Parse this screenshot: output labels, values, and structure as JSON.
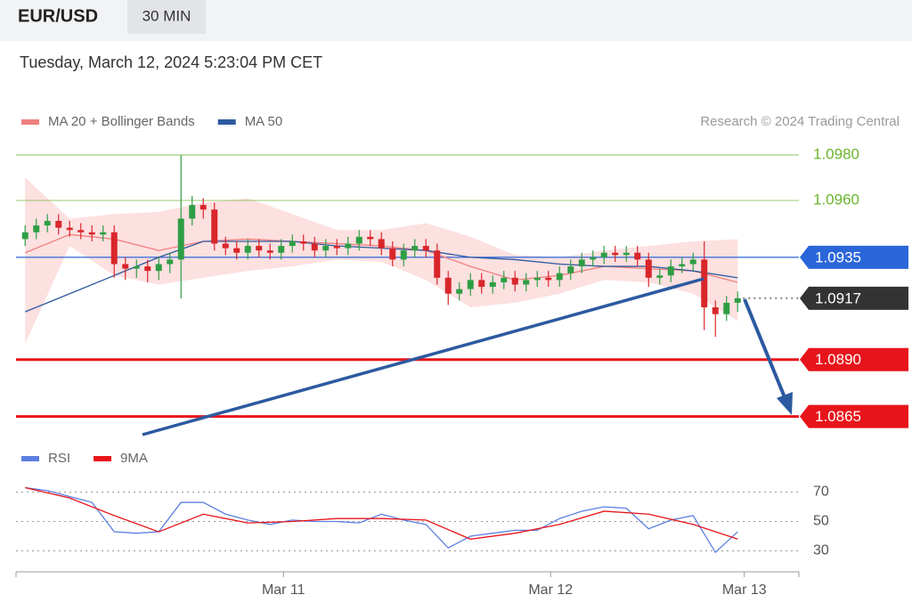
{
  "header": {
    "symbol": "EUR/USD",
    "interval": "30 MIN",
    "timestamp": "Tuesday, March 12, 2024 5:23:04 PM CET",
    "credit": "Research © 2024 Trading Central"
  },
  "chart_data": [
    {
      "type": "candlestick",
      "up_color": "#2e9e44",
      "down_color": "#d9262b",
      "band_color": "#fde0e0",
      "xlim": [
        -0.5,
        69.5
      ],
      "ylim": [
        1.0857,
        1.0989
      ],
      "open": [
        1.0943,
        1.0946,
        1.0949,
        1.0951,
        1.0948,
        1.0947,
        1.0946,
        1.0945,
        1.0946,
        1.0932,
        1.093,
        1.0931,
        1.0929,
        1.0932,
        1.0934,
        1.0952,
        1.0958,
        1.0956,
        1.0941,
        1.0939,
        1.0937,
        1.094,
        1.0938,
        1.0937,
        1.094,
        1.0942,
        1.0941,
        1.0938,
        1.094,
        1.0939,
        1.0941,
        1.0944,
        1.0943,
        1.0939,
        1.0934,
        1.0938,
        1.094,
        1.0938,
        1.0926,
        1.0919,
        1.0921,
        1.0925,
        1.0922,
        1.0924,
        1.0926,
        1.0923,
        1.0925,
        1.0926,
        1.0925,
        1.0928,
        1.0931,
        1.0934,
        1.0935,
        1.0937,
        1.0936,
        1.0937,
        1.0934,
        1.0926,
        1.0927,
        1.0931,
        1.0932,
        1.0934,
        1.0913,
        1.091,
        1.0915
      ],
      "high": [
        1.0949,
        1.0952,
        1.0954,
        1.0954,
        1.0951,
        1.095,
        1.0949,
        1.0949,
        1.0949,
        1.0935,
        1.0934,
        1.0934,
        1.0935,
        1.0937,
        1.098,
        1.0962,
        1.0961,
        1.0959,
        1.0944,
        1.0942,
        1.0943,
        1.0943,
        1.0941,
        1.0943,
        1.0945,
        1.0945,
        1.0944,
        1.0943,
        1.0943,
        1.0944,
        1.0947,
        1.0947,
        1.0946,
        1.0942,
        1.0941,
        1.0943,
        1.0943,
        1.0941,
        1.0929,
        1.0924,
        1.0928,
        1.0928,
        1.0927,
        1.0929,
        1.0929,
        1.0928,
        1.0929,
        1.0929,
        1.0931,
        1.0934,
        1.0937,
        1.0938,
        1.094,
        1.094,
        1.094,
        1.094,
        1.0937,
        1.093,
        1.0934,
        1.0935,
        1.0937,
        1.0942,
        1.0916,
        1.0918,
        1.092
      ],
      "low": [
        1.094,
        1.0943,
        1.0946,
        1.0945,
        1.0944,
        1.0943,
        1.0942,
        1.0942,
        1.0926,
        1.0925,
        1.0926,
        1.0924,
        1.0925,
        1.0928,
        1.0917,
        1.0949,
        1.0952,
        1.0938,
        1.0936,
        1.0934,
        1.0934,
        1.0935,
        1.0934,
        1.0934,
        1.0937,
        1.0938,
        1.0935,
        1.0935,
        1.0936,
        1.0936,
        1.0938,
        1.094,
        1.0936,
        1.0931,
        1.0931,
        1.0935,
        1.0935,
        1.0923,
        1.0914,
        1.0916,
        1.0918,
        1.0919,
        1.0919,
        1.0921,
        1.092,
        1.092,
        1.0922,
        1.0922,
        1.0922,
        1.0925,
        1.0928,
        1.0931,
        1.0932,
        1.0933,
        1.0933,
        1.0931,
        1.0922,
        1.0923,
        1.0924,
        1.0928,
        1.0929,
        1.0903,
        1.09,
        1.0907,
        1.0911
      ],
      "close": [
        1.0946,
        1.0949,
        1.0951,
        1.0948,
        1.0947,
        1.0946,
        1.0945,
        1.0946,
        1.0932,
        1.093,
        1.0931,
        1.0929,
        1.0932,
        1.0934,
        1.0952,
        1.0958,
        1.0956,
        1.0941,
        1.0939,
        1.0937,
        1.094,
        1.0938,
        1.0937,
        1.094,
        1.0942,
        1.0941,
        1.0938,
        1.094,
        1.0939,
        1.0941,
        1.0944,
        1.0943,
        1.0939,
        1.0934,
        1.0938,
        1.094,
        1.0938,
        1.0926,
        1.0919,
        1.0921,
        1.0925,
        1.0922,
        1.0924,
        1.0926,
        1.0923,
        1.0925,
        1.0926,
        1.0925,
        1.0928,
        1.0931,
        1.0934,
        1.0935,
        1.0937,
        1.0936,
        1.0937,
        1.0934,
        1.0926,
        1.0927,
        1.0931,
        1.0932,
        1.0934,
        1.0913,
        1.091,
        1.0915,
        1.0917
      ],
      "series": [
        {
          "name": "MA 20 + Bollinger Bands",
          "color": "#f08080",
          "x": [
            0,
            4,
            8,
            12,
            16,
            20,
            24,
            28,
            32,
            36,
            40,
            44,
            48,
            52,
            56,
            60,
            64
          ],
          "values": [
            1.0937,
            1.0945,
            1.0943,
            1.0938,
            1.0942,
            1.0943,
            1.0942,
            1.0941,
            1.094,
            1.0938,
            1.0931,
            1.0925,
            1.0927,
            1.0931,
            1.093,
            1.0929,
            1.0924
          ],
          "upper": [
            1.097,
            1.0952,
            1.0954,
            1.0955,
            1.0959,
            1.0961,
            1.0954,
            1.0947,
            1.0947,
            1.095,
            1.0944,
            1.0936,
            1.0935,
            1.0938,
            1.094,
            1.0942,
            1.0943
          ],
          "lower": [
            1.0897,
            1.094,
            1.0927,
            1.0923,
            1.0926,
            1.0929,
            1.0931,
            1.0934,
            1.0933,
            1.0925,
            1.0913,
            1.0915,
            1.0919,
            1.0925,
            1.0924,
            1.0919,
            1.0907
          ]
        },
        {
          "name": "MA 50",
          "color": "#2c5aa0",
          "x": [
            0,
            4,
            8,
            12,
            16,
            20,
            24,
            28,
            32,
            36,
            40,
            44,
            48,
            52,
            56,
            60,
            64
          ],
          "values": [
            1.0911,
            1.0919,
            1.0927,
            1.0935,
            1.0942,
            1.0942,
            1.0942,
            1.094,
            1.0939,
            1.0938,
            1.0935,
            1.0934,
            1.0932,
            1.0931,
            1.0931,
            1.0929,
            1.0926
          ]
        }
      ],
      "levels": [
        {
          "value": 1.098,
          "label": "1.0980",
          "color": "#6ab42c",
          "tag": false,
          "line": "solid"
        },
        {
          "value": 1.096,
          "label": "1.0960",
          "color": "#6ab42c",
          "tag": false,
          "line": "solid"
        },
        {
          "value": 1.0935,
          "label": "1.0935",
          "color": "#2b66d9",
          "tag": true,
          "line": "solid"
        },
        {
          "value": 1.0917,
          "label": "1.0917",
          "color": "#333333",
          "tag": true,
          "line": "dotted"
        },
        {
          "value": 1.089,
          "label": "1.0890",
          "color": "#e8141b",
          "tag": true,
          "line": "solid"
        },
        {
          "value": 1.0865,
          "label": "1.0865",
          "color": "#e8141b",
          "tag": true,
          "line": "solid"
        }
      ]
    },
    {
      "type": "line",
      "xlim": [
        -0.5,
        69.5
      ],
      "ylim": [
        20,
        80
      ],
      "yticks": [
        30,
        50,
        70
      ],
      "grid": true,
      "xticks": [
        {
          "value": 23.2,
          "label": "Mar 11"
        },
        {
          "value": 47.2,
          "label": "Mar 12"
        },
        {
          "value": 64.6,
          "label": "Mar 13"
        }
      ],
      "series": [
        {
          "name": "RSI",
          "color": "#5b7fe0",
          "x": [
            0,
            2,
            4,
            6,
            8,
            10,
            12,
            14,
            16,
            18,
            20,
            22,
            24,
            26,
            28,
            30,
            32,
            34,
            36,
            38,
            40,
            42,
            44,
            46,
            48,
            50,
            52,
            54,
            56,
            58,
            60,
            62,
            64
          ],
          "values": [
            73,
            71,
            67,
            63,
            43,
            42,
            43,
            63,
            63,
            55,
            51,
            48,
            51,
            50,
            50,
            49,
            55,
            51,
            48,
            32,
            40,
            42,
            44,
            44,
            52,
            57,
            60,
            59,
            45,
            51,
            54,
            29,
            43
          ]
        },
        {
          "name": "9MA",
          "color": "#e8141b",
          "x": [
            0,
            4,
            8,
            12,
            16,
            20,
            24,
            28,
            32,
            36,
            40,
            44,
            48,
            52,
            56,
            60,
            64
          ],
          "values": [
            73,
            66,
            54,
            43,
            55,
            49,
            50,
            52,
            52,
            51,
            38,
            42,
            48,
            57,
            55,
            48,
            38
          ]
        }
      ]
    }
  ]
}
